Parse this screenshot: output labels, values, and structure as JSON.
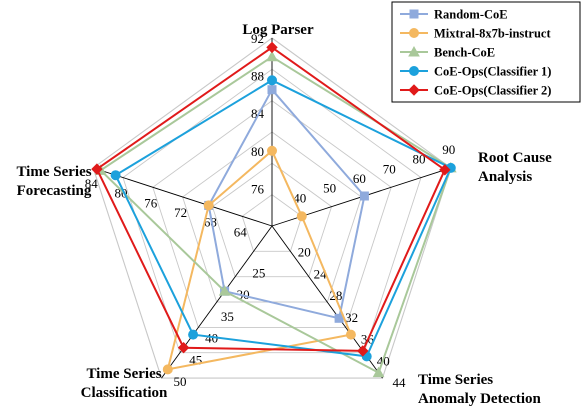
{
  "chart_data": {
    "type": "radar",
    "axes": [
      {
        "key": "log_parser",
        "label_lines": [
          "Log Parser"
        ],
        "min": 72,
        "max": 92,
        "ticks": [
          {
            "value": 76,
            "text": "76"
          },
          {
            "value": 80,
            "text": "80"
          },
          {
            "value": 84,
            "text": "84"
          },
          {
            "value": 88,
            "text": "88"
          },
          {
            "value": 92,
            "text": "92"
          }
        ]
      },
      {
        "key": "root_cause_analysis",
        "label_lines": [
          "Root Cause",
          "Analysis"
        ],
        "min": 30,
        "max": 90,
        "ticks": [
          {
            "value": 40,
            "text": "40"
          },
          {
            "value": 50,
            "text": "50"
          },
          {
            "value": 60,
            "text": "60"
          },
          {
            "value": 70,
            "text": "70"
          },
          {
            "value": 80,
            "text": "80"
          },
          {
            "value": 90,
            "text": "90"
          }
        ]
      },
      {
        "key": "ts_anomaly_detection",
        "label_lines": [
          "Time Series",
          "Anomaly Detection"
        ],
        "min": 16,
        "max": 44,
        "ticks": [
          {
            "value": 20,
            "text": "20"
          },
          {
            "value": 24,
            "text": "24"
          },
          {
            "value": 28,
            "text": "28"
          },
          {
            "value": 32,
            "text": "32"
          },
          {
            "value": 36,
            "text": "36"
          },
          {
            "value": 40,
            "text": "40"
          },
          {
            "value": 44,
            "text": "44"
          }
        ]
      },
      {
        "key": "ts_classification",
        "label_lines": [
          "Time Series",
          "Classification"
        ],
        "min": 15,
        "max": 50,
        "ticks": [
          {
            "value": 25,
            "text": "25"
          },
          {
            "value": 30,
            "text": "30"
          },
          {
            "value": 35,
            "text": "35"
          },
          {
            "value": 40,
            "text": "40"
          },
          {
            "value": 45,
            "text": "45"
          },
          {
            "value": 50,
            "text": "50"
          }
        ]
      },
      {
        "key": "ts_forecasting",
        "label_lines": [
          "Time Series",
          "Forecasting"
        ],
        "min": 60,
        "max": 84,
        "ticks": [
          {
            "value": 64,
            "text": "64"
          },
          {
            "value": 68,
            "text": "68"
          },
          {
            "value": 72,
            "text": "72"
          },
          {
            "value": 76,
            "text": "76"
          },
          {
            "value": 80,
            "text": "80"
          },
          {
            "value": 84,
            "text": "84"
          }
        ]
      }
    ],
    "series": [
      {
        "name": "Random-CoE",
        "color": "#8faadc",
        "marker": "square",
        "values": [
          86.5,
          61,
          33,
          30,
          68.5
        ]
      },
      {
        "name": "Mixtral-8x7b-instruct",
        "color": "#f4b860",
        "marker": "circle",
        "values": [
          80,
          40,
          36,
          48,
          68.5
        ]
      },
      {
        "name": "Bench-CoE",
        "color": "#a9c89a",
        "marker": "triangle",
        "values": [
          90,
          90,
          43,
          30,
          83
        ]
      },
      {
        "name": "CoE-Ops(Classifier 1)",
        "color": "#1ca1dc",
        "marker": "circle",
        "values": [
          87.5,
          90,
          40,
          40,
          81
        ]
      },
      {
        "name": "CoE-Ops(Classifier 2)",
        "color": "#e01a1a",
        "marker": "diamond",
        "values": [
          91,
          88,
          39,
          43,
          83.5
        ]
      }
    ],
    "grid_levels": 6,
    "legend_position": "top-right"
  }
}
